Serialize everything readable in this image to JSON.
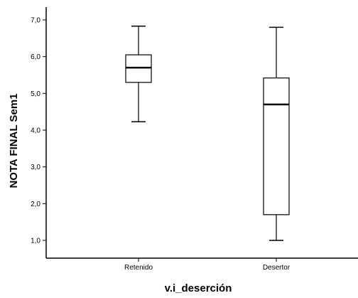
{
  "chart_data": {
    "type": "boxplot",
    "title": "",
    "xlabel": "v.i_deserción",
    "ylabel": "NOTA FINAL Sem1",
    "ylim": [
      0.7,
      7.0
    ],
    "yticks": [
      1.0,
      2.0,
      3.0,
      4.0,
      5.0,
      6.0,
      7.0
    ],
    "ytick_labels": [
      "1,0",
      "2,0",
      "3,0",
      "4,0",
      "5,0",
      "6,0",
      "7,0"
    ],
    "categories": [
      "Retenido",
      "Desertor"
    ],
    "boxes": [
      {
        "category": "Retenido",
        "min": 4.23,
        "q1": 5.3,
        "median": 5.7,
        "q3": 6.05,
        "max": 6.83
      },
      {
        "category": "Desertor",
        "min": 1.0,
        "q1": 1.7,
        "median": 4.7,
        "q3": 5.42,
        "max": 6.8
      }
    ],
    "grid": false,
    "legend": "none"
  }
}
